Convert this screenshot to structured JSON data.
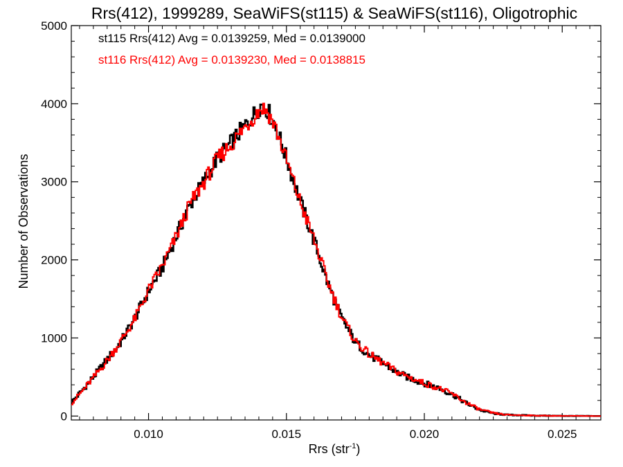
{
  "chart_data": {
    "type": "line",
    "title": "Rrs(412), 1999289, SeaWiFS(st115) & SeaWiFS(st116), Oligotrophic",
    "xlabel": "Rrs (str",
    "xlabel_sup": "-1",
    "xlabel_suffix": ")",
    "ylabel": "Number of Observations",
    "xlim": [
      0.0072,
      0.0264
    ],
    "ylim": [
      -50,
      5000
    ],
    "xticks": [
      0.01,
      0.015,
      0.02,
      0.025
    ],
    "xtick_labels": [
      "0.010",
      "0.015",
      "0.020",
      "0.025"
    ],
    "yticks": [
      0,
      1000,
      2000,
      3000,
      4000,
      5000
    ],
    "ytick_labels": [
      "0",
      "1000",
      "2000",
      "3000",
      "4000",
      "5000"
    ],
    "grid": false,
    "legend_position": "top-left",
    "series": [
      {
        "name": "st115",
        "color": "#000000",
        "legend": "st115 Rrs(412) Avg = 0.0139259, Med = 0.0139000",
        "x": [
          0.0072,
          0.0076,
          0.008,
          0.0085,
          0.009,
          0.0095,
          0.01,
          0.0105,
          0.011,
          0.0115,
          0.012,
          0.0125,
          0.013,
          0.0135,
          0.0138,
          0.0141,
          0.0143,
          0.0146,
          0.015,
          0.0155,
          0.016,
          0.0165,
          0.017,
          0.0175,
          0.018,
          0.0185,
          0.019,
          0.0195,
          0.02,
          0.0205,
          0.021,
          0.0215,
          0.022,
          0.0225,
          0.023,
          0.024,
          0.025,
          0.0264
        ],
        "values": [
          170,
          330,
          500,
          720,
          950,
          1250,
          1600,
          1900,
          2300,
          2700,
          3000,
          3300,
          3500,
          3720,
          3850,
          3990,
          3930,
          3720,
          3300,
          2750,
          2250,
          1700,
          1250,
          950,
          780,
          680,
          560,
          480,
          420,
          360,
          280,
          170,
          80,
          35,
          15,
          6,
          2,
          0
        ]
      },
      {
        "name": "st116",
        "color": "#ff0000",
        "legend": "st116 Rrs(412) Avg = 0.0139230, Med = 0.0138815",
        "x": [
          0.0072,
          0.0076,
          0.008,
          0.0085,
          0.009,
          0.0095,
          0.01,
          0.0105,
          0.011,
          0.0115,
          0.012,
          0.0125,
          0.013,
          0.0135,
          0.0138,
          0.0141,
          0.0143,
          0.0146,
          0.015,
          0.0155,
          0.016,
          0.0165,
          0.017,
          0.0175,
          0.018,
          0.0185,
          0.019,
          0.0195,
          0.02,
          0.0205,
          0.021,
          0.0215,
          0.022,
          0.0225,
          0.023,
          0.024,
          0.025,
          0.0264
        ],
        "values": [
          160,
          320,
          490,
          710,
          960,
          1240,
          1610,
          1920,
          2290,
          2710,
          2990,
          3290,
          3480,
          3700,
          3830,
          3950,
          3910,
          3700,
          3280,
          2740,
          2260,
          1720,
          1270,
          960,
          790,
          680,
          570,
          490,
          420,
          360,
          285,
          175,
          85,
          38,
          15,
          6,
          2,
          0
        ]
      }
    ]
  }
}
